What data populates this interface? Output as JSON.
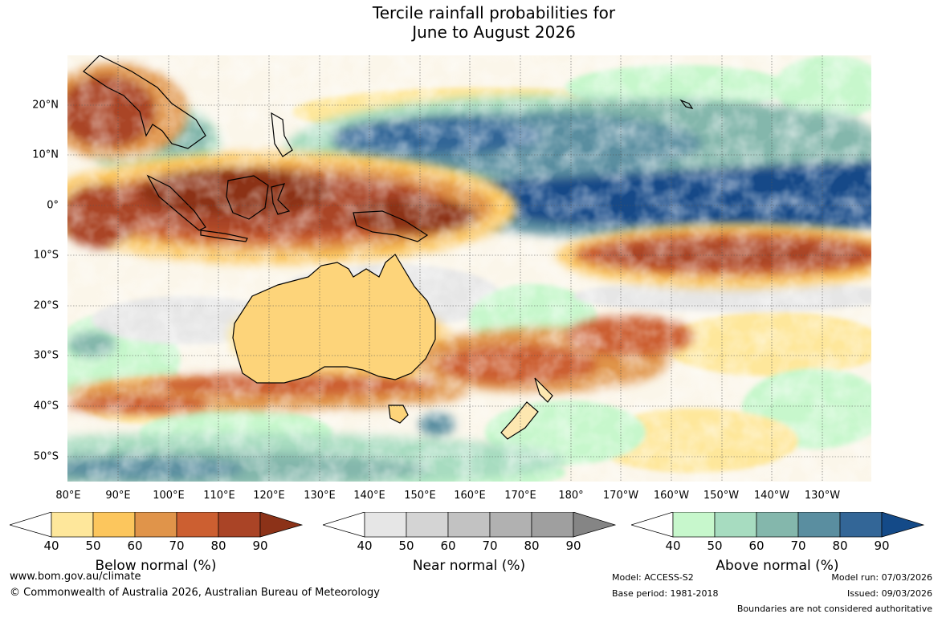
{
  "title": {
    "line1": "Tercile rainfall probabilities for",
    "line2": "June to August 2026"
  },
  "map": {
    "lat_labels": [
      "20°N",
      "10°N",
      "0°",
      "10°S",
      "20°S",
      "30°S",
      "40°S",
      "50°S"
    ],
    "lon_labels": [
      "80°E",
      "90°E",
      "100°E",
      "110°E",
      "120°E",
      "130°E",
      "140°E",
      "150°E",
      "160°E",
      "170°E",
      "180°",
      "170°W",
      "160°W",
      "150°W",
      "140°W",
      "130°W"
    ]
  },
  "colorbars": {
    "below": {
      "title": "Below normal (%)",
      "ticks": [
        "40",
        "50",
        "60",
        "70",
        "80",
        "90"
      ],
      "colors": [
        "#ffffff",
        "#fee79b",
        "#fcc65d",
        "#e0944a",
        "#cc5f31",
        "#aa4426",
        "#8c3218"
      ]
    },
    "near": {
      "title": "Near normal (%)",
      "ticks": [
        "40",
        "50",
        "60",
        "70",
        "80",
        "90"
      ],
      "colors": [
        "#ffffff",
        "#e6e6e6",
        "#d4d4d4",
        "#c2c2c2",
        "#b1b1b1",
        "#9f9f9f",
        "#858585"
      ]
    },
    "above": {
      "title": "Above normal (%)",
      "ticks": [
        "40",
        "50",
        "60",
        "70",
        "80",
        "90"
      ],
      "colors": [
        "#ffffff",
        "#c7f7cc",
        "#a7dcc0",
        "#84b7ac",
        "#5a8ea0",
        "#336697",
        "#144a88"
      ]
    }
  },
  "footer": {
    "website": "www.bom.gov.au/climate",
    "copyright": "© Commonwealth of Australia 2026, Australian Bureau of Meteorology",
    "model": "Model: ACCESS-S2",
    "base_period": "Base period: 1981-2018",
    "model_run": "Model run: 07/03/2026",
    "issued": "Issued: 09/03/2026",
    "disclaimer": "Boundaries are not considered authoritative"
  }
}
